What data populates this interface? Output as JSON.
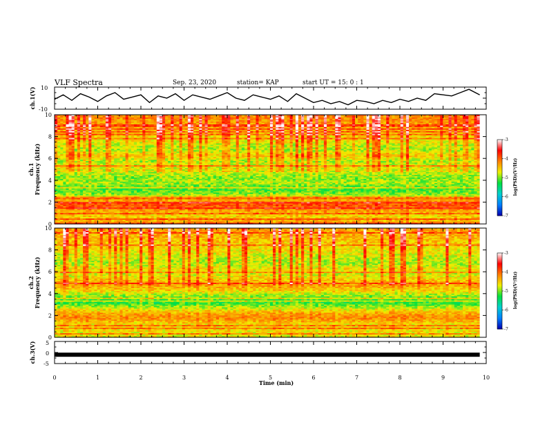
{
  "header": {
    "title": "VLF Spectra",
    "date": "Sep. 23, 2020",
    "station": "station= KAP",
    "start": "start  UT  =   15: 0   : 1"
  },
  "chart_data": [
    {
      "type": "line",
      "panel": "ch1-waveform",
      "ylabel": "ch.1(V)",
      "ylim": [
        -10,
        10
      ],
      "yticks": [
        "10",
        "-10"
      ],
      "xlim": [
        0,
        9.85
      ],
      "series": [
        {
          "color": "#000000",
          "x": [
            0,
            0.2,
            0.4,
            0.6,
            0.8,
            1.0,
            1.2,
            1.4,
            1.6,
            1.8,
            2.0,
            2.2,
            2.4,
            2.6,
            2.8,
            3.0,
            3.2,
            3.4,
            3.6,
            3.8,
            4.0,
            4.2,
            4.4,
            4.6,
            4.8,
            5.0,
            5.2,
            5.4,
            5.6,
            5.8,
            6.0,
            6.2,
            6.4,
            6.6,
            6.8,
            7.0,
            7.2,
            7.4,
            7.6,
            7.8,
            8.0,
            8.2,
            8.4,
            8.6,
            8.8,
            9.0,
            9.2,
            9.4,
            9.6,
            9.85
          ],
          "y": [
            -1,
            3,
            -2,
            4,
            1,
            -3,
            2,
            5,
            -1,
            1,
            3,
            -4,
            2,
            0,
            4,
            -2,
            3,
            1,
            -1,
            2,
            5,
            0,
            -2,
            3,
            1,
            -1,
            2,
            -3,
            4,
            0,
            -4,
            -2,
            -5,
            -3,
            -6,
            -2,
            -3,
            -5,
            -2,
            -4,
            -1,
            -3,
            0,
            -2,
            4,
            3,
            2,
            5,
            8,
            3
          ]
        }
      ]
    },
    {
      "type": "heatmap",
      "panel": "ch1-spectrogram",
      "ylabel": "Frequency (kHz)",
      "channel_label": "ch.1",
      "ylim": [
        0,
        10
      ],
      "yticks": [
        0,
        2,
        4,
        6,
        8,
        10
      ],
      "xlim": [
        0,
        9.85
      ],
      "colorbar": {
        "label": "log(PSD)(V²/Hz)",
        "range": [
          -7,
          -3
        ],
        "ticks": [
          "-3",
          "-4",
          "-5",
          "-6",
          "-7"
        ],
        "stops": [
          "#0000b0",
          "#0080ff",
          "#00d0d0",
          "#00e040",
          "#f0f000",
          "#ff8000",
          "#ff0000",
          "#ffffff"
        ]
      },
      "frequency_profile_log_psd": [
        {
          "f": 0.25,
          "v": -4.4
        },
        {
          "f": 0.75,
          "v": -4.6
        },
        {
          "f": 1.25,
          "v": -4.3
        },
        {
          "f": 1.75,
          "v": -3.9
        },
        {
          "f": 2.25,
          "v": -4.5
        },
        {
          "f": 2.75,
          "v": -5.0
        },
        {
          "f": 3.25,
          "v": -5.2
        },
        {
          "f": 3.75,
          "v": -4.9
        },
        {
          "f": 4.25,
          "v": -5.0
        },
        {
          "f": 4.75,
          "v": -4.8
        },
        {
          "f": 5.25,
          "v": -4.7
        },
        {
          "f": 5.75,
          "v": -4.9
        },
        {
          "f": 6.25,
          "v": -4.5
        },
        {
          "f": 6.75,
          "v": -4.9
        },
        {
          "f": 7.25,
          "v": -4.8
        },
        {
          "f": 7.75,
          "v": -4.6
        },
        {
          "f": 8.25,
          "v": -4.5
        },
        {
          "f": 8.75,
          "v": -4.4
        },
        {
          "f": 9.25,
          "v": -4.3
        },
        {
          "f": 9.75,
          "v": -4.2
        }
      ]
    },
    {
      "type": "heatmap",
      "panel": "ch2-spectrogram",
      "ylabel": "Frequency (kHz)",
      "channel_label": "ch.2",
      "ylim": [
        0,
        10
      ],
      "yticks": [
        0,
        2,
        4,
        6,
        8,
        10
      ],
      "xlim": [
        0,
        9.85
      ],
      "colorbar": {
        "label": "log(PSD)(V²/Hz)",
        "range": [
          -7,
          -3
        ],
        "ticks": [
          "-3",
          "-4",
          "-5",
          "-6",
          "-7"
        ],
        "stops": [
          "#0000b0",
          "#0080ff",
          "#00d0d0",
          "#00e040",
          "#f0f000",
          "#ff8000",
          "#ff0000",
          "#ffffff"
        ]
      },
      "frequency_profile_log_psd": [
        {
          "f": 0.25,
          "v": -4.7
        },
        {
          "f": 0.75,
          "v": -4.6
        },
        {
          "f": 1.25,
          "v": -4.6
        },
        {
          "f": 1.75,
          "v": -4.2
        },
        {
          "f": 2.25,
          "v": -4.4
        },
        {
          "f": 2.75,
          "v": -4.9
        },
        {
          "f": 3.25,
          "v": -5.3
        },
        {
          "f": 3.75,
          "v": -5.0
        },
        {
          "f": 4.25,
          "v": -4.6
        },
        {
          "f": 4.75,
          "v": -4.3
        },
        {
          "f": 5.25,
          "v": -4.5
        },
        {
          "f": 5.75,
          "v": -4.8
        },
        {
          "f": 6.25,
          "v": -4.6
        },
        {
          "f": 6.75,
          "v": -4.9
        },
        {
          "f": 7.25,
          "v": -4.8
        },
        {
          "f": 7.75,
          "v": -4.7
        },
        {
          "f": 8.25,
          "v": -4.6
        },
        {
          "f": 8.75,
          "v": -4.5
        },
        {
          "f": 9.25,
          "v": -4.4
        },
        {
          "f": 9.75,
          "v": -4.3
        }
      ]
    },
    {
      "type": "line",
      "panel": "ch3-waveform",
      "ylabel": "ch.3(V)",
      "ylim": [
        -5,
        5
      ],
      "yticks": [
        "5",
        "0",
        "-5"
      ],
      "xlim": [
        0,
        9.85
      ],
      "series": [
        {
          "color": "#000000",
          "x": [
            0,
            9.85
          ],
          "y": [
            -1,
            -1
          ]
        }
      ]
    }
  ],
  "xaxis": {
    "label": "Time (min)",
    "range": [
      0,
      10
    ],
    "ticks": [
      "0",
      "1",
      "2",
      "3",
      "4",
      "5",
      "6",
      "7",
      "8",
      "9",
      "10"
    ]
  }
}
